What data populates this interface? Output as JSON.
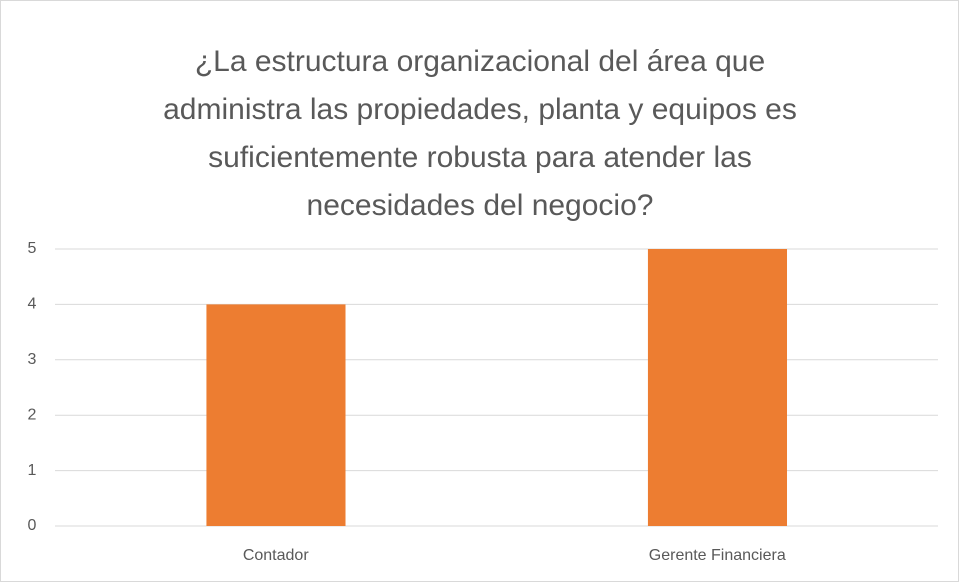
{
  "chart_data": {
    "type": "bar",
    "title": "¿La estructura organizacional del área que administra las propiedades, planta y equipos es suficientemente robusta para atender las necesidades del negocio?",
    "categories": [
      "Contador",
      "Gerente Financiera"
    ],
    "values": [
      4,
      5
    ],
    "color": "#ed7d31",
    "ylim": [
      0,
      5
    ],
    "yticks": [
      0,
      1,
      2,
      3,
      4,
      5
    ],
    "grid": true
  }
}
